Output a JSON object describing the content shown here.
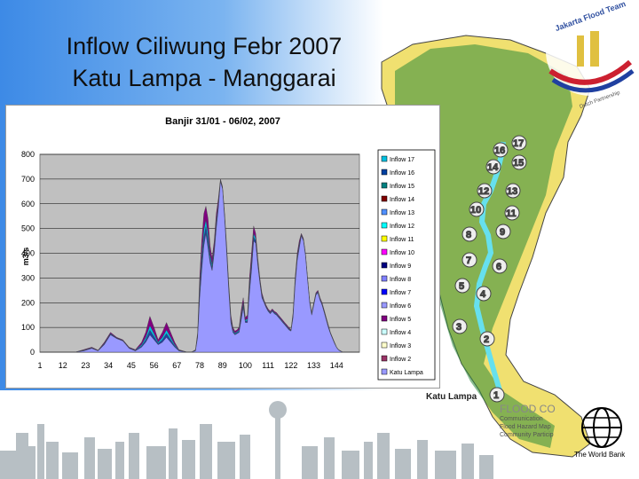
{
  "slide": {
    "title_line1": "Inflow Ciliwung Febr 2007",
    "title_line2": "Katu Lampa - Manggarai"
  },
  "map": {
    "station_label": "Katu Lampa",
    "station_numbers": [
      "1",
      "2",
      "3",
      "4",
      "5",
      "6",
      "7",
      "8",
      "9",
      "10",
      "11",
      "12",
      "13",
      "14",
      "15",
      "16",
      "17"
    ],
    "logo_text": "Jakarta Flood Team",
    "logo_subtext": "Dutch Partnership",
    "flood_lines": [
      "FLOOD CO",
      "Communication",
      "Flood Hazard Map",
      "Community Particip"
    ],
    "worldbank_label": "The World Bank"
  },
  "colors": {
    "background_blue": "#3d8ae6",
    "area_main": "#9999ff",
    "river": "#66e0ee"
  },
  "chart_data": {
    "type": "area",
    "title": "Banjir 31/01 - 06/02, 2007",
    "xlabel": "",
    "ylabel": "m3/s",
    "ylim": [
      0,
      800
    ],
    "xlim": [
      1,
      155
    ],
    "yticks": [
      0,
      100,
      200,
      300,
      400,
      500,
      600,
      700,
      800
    ],
    "xticks": [
      "1",
      "12",
      "23",
      "34",
      "45",
      "56",
      "67",
      "78",
      "89",
      "100",
      "111",
      "122",
      "133",
      "144"
    ],
    "grid": true,
    "legend_position": "right",
    "total_outline": {
      "x": [
        1,
        18,
        22,
        26,
        29,
        32,
        35,
        38,
        41,
        44,
        47,
        50,
        52,
        54,
        56,
        58,
        60,
        62,
        64,
        66,
        68,
        70,
        72,
        74,
        76,
        77,
        78,
        79,
        80,
        81,
        82,
        83,
        84,
        85,
        86,
        87,
        88,
        89,
        90,
        91,
        92,
        93,
        94,
        95,
        96,
        97,
        98,
        99,
        100,
        101,
        102,
        103,
        104,
        105,
        106,
        107,
        108,
        109,
        110,
        111,
        112,
        113,
        114,
        115,
        116,
        117,
        118,
        119,
        120,
        121,
        122,
        123,
        124,
        125,
        126,
        127,
        128,
        129,
        130,
        131,
        132,
        133,
        134,
        135,
        136,
        137,
        138,
        139,
        140,
        141,
        142,
        143,
        144,
        145,
        146,
        147,
        148,
        149,
        150,
        151,
        152,
        153,
        154,
        155
      ],
      "y": [
        0,
        0,
        10,
        20,
        8,
        40,
        80,
        60,
        50,
        20,
        10,
        40,
        80,
        145,
        100,
        50,
        80,
        120,
        80,
        40,
        10,
        5,
        0,
        0,
        10,
        80,
        300,
        450,
        560,
        590,
        540,
        430,
        380,
        450,
        560,
        620,
        700,
        670,
        560,
        430,
        280,
        150,
        100,
        85,
        90,
        100,
        170,
        220,
        140,
        150,
        300,
        400,
        510,
        480,
        380,
        300,
        240,
        210,
        190,
        175,
        165,
        175,
        165,
        160,
        150,
        140,
        130,
        120,
        110,
        100,
        90,
        160,
        300,
        400,
        450,
        480,
        460,
        400,
        300,
        210,
        160,
        200,
        240,
        250,
        220,
        200,
        170,
        140,
        110,
        80,
        60,
        40,
        20,
        10,
        5,
        0,
        0,
        0,
        0,
        0,
        0,
        0,
        0,
        0
      ]
    },
    "base_area": {
      "x": [
        1,
        18,
        22,
        26,
        29,
        32,
        35,
        38,
        41,
        44,
        47,
        50,
        52,
        54,
        56,
        58,
        60,
        62,
        64,
        66,
        68,
        70,
        72,
        74,
        76,
        77,
        78,
        79,
        80,
        81,
        82,
        83,
        84,
        85,
        86,
        87,
        88,
        89,
        90,
        91,
        92,
        93,
        94,
        95,
        96,
        97,
        98,
        99,
        100,
        101,
        102,
        103,
        104,
        105,
        106,
        107,
        108,
        109,
        110,
        111,
        112,
        113,
        114,
        115,
        116,
        117,
        118,
        119,
        120,
        121,
        122,
        123,
        124,
        125,
        126,
        127,
        128,
        129,
        130,
        131,
        132,
        133,
        134,
        135,
        136,
        137,
        138,
        139,
        140,
        141,
        142,
        143,
        144,
        145,
        146,
        147,
        148,
        149,
        150,
        151,
        152,
        153,
        154,
        155
      ],
      "y": [
        0,
        0,
        5,
        15,
        5,
        30,
        70,
        55,
        45,
        15,
        5,
        20,
        40,
        70,
        50,
        30,
        40,
        60,
        40,
        20,
        5,
        2,
        0,
        0,
        5,
        60,
        220,
        330,
        430,
        480,
        420,
        360,
        330,
        400,
        500,
        580,
        690,
        660,
        540,
        400,
        250,
        120,
        80,
        70,
        75,
        80,
        130,
        180,
        120,
        120,
        240,
        330,
        450,
        440,
        350,
        280,
        220,
        200,
        180,
        165,
        155,
        165,
        155,
        150,
        140,
        130,
        120,
        110,
        100,
        90,
        85,
        140,
        270,
        370,
        420,
        470,
        450,
        390,
        290,
        200,
        150,
        190,
        230,
        240,
        210,
        190,
        160,
        130,
        100,
        75,
        55,
        35,
        18,
        8,
        3,
        0,
        0,
        0,
        0,
        0,
        0,
        0,
        0,
        0
      ]
    },
    "legend_series": [
      "Inflow 17",
      "Inflow 16",
      "Inflow 15",
      "Inflow 14",
      "Inflow 13",
      "Inflow 12",
      "Inflow 11",
      "Inflow 10",
      "Inflow 9",
      "Inflow 8",
      "Inflow 7",
      "Inflow 6",
      "Inflow 5",
      "Inflow 4",
      "Inflow 3",
      "Inflow 2",
      "Katu Lampa"
    ],
    "legend_colors": [
      "#00c0e0",
      "#0040a0",
      "#008080",
      "#800000",
      "#5090ff",
      "#00ffff",
      "#ffff00",
      "#ff00ff",
      "#000080",
      "#8080ff",
      "#0000ff",
      "#9999ff",
      "#800080",
      "#ccffff",
      "#ffffcc",
      "#993366",
      "#9999ff"
    ]
  }
}
